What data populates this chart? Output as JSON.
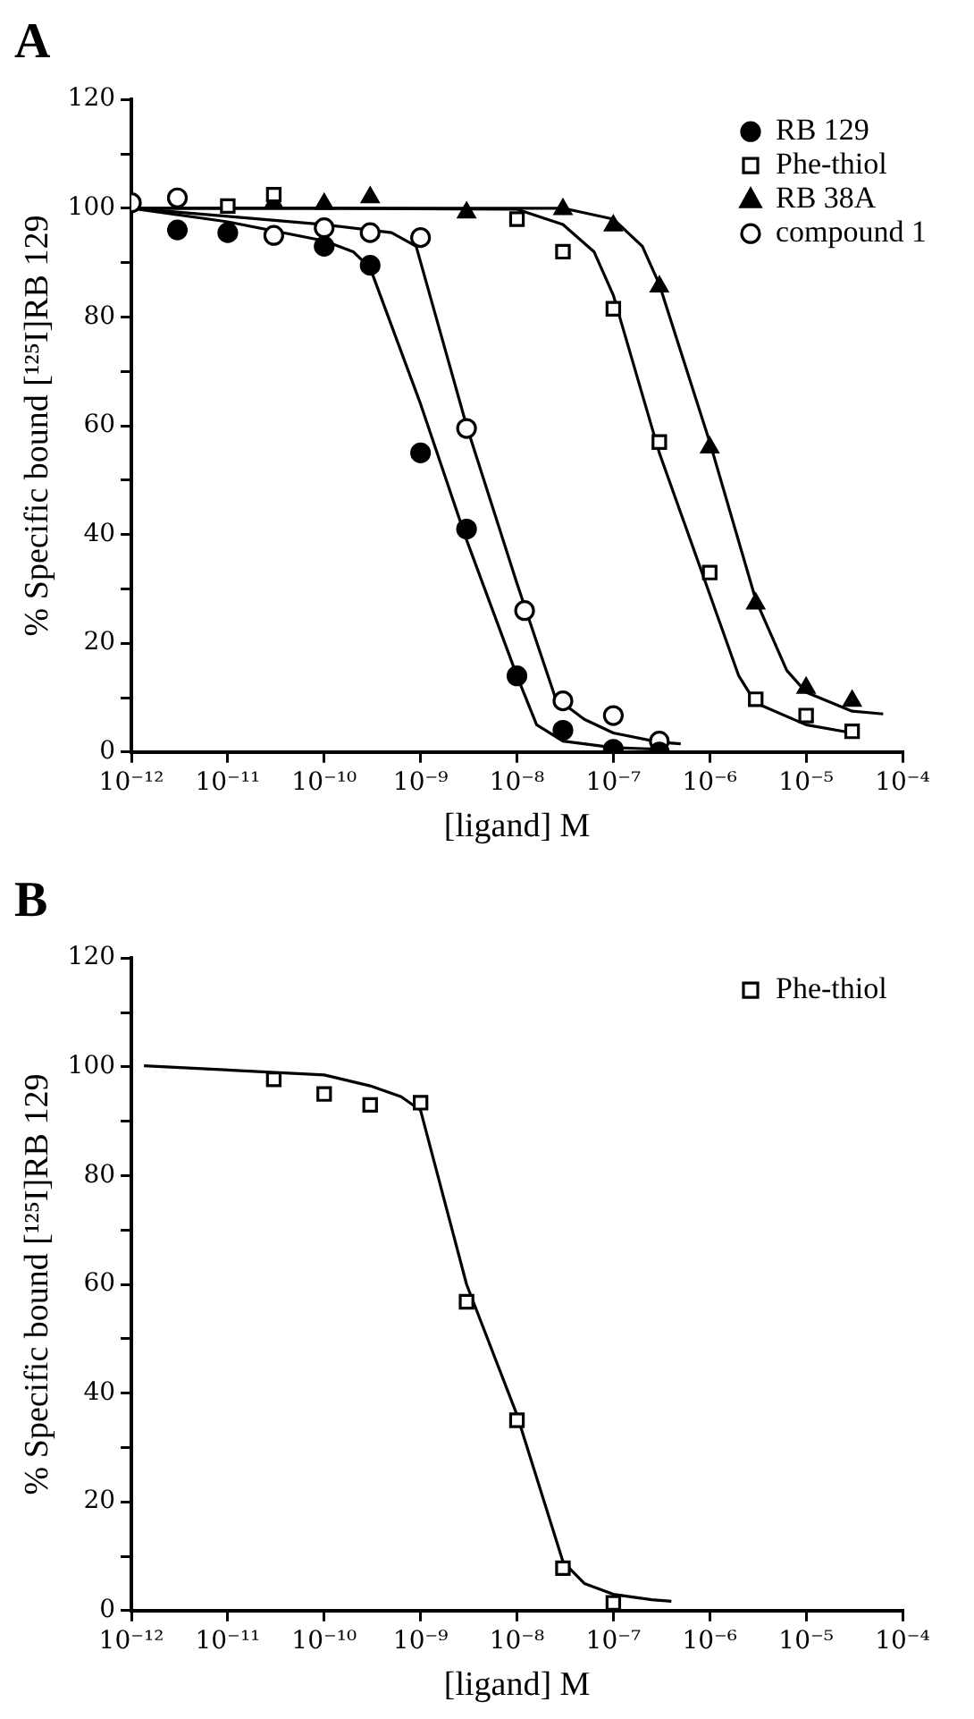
{
  "chart_data": [
    {
      "type": "scatter",
      "title": "A",
      "xlabel": "[ligand] M",
      "ylabel": "% Specific bound [¹²⁵I]RB 129",
      "log": "x",
      "legend": "top right",
      "xlim": [
        1e-12,
        0.0001
      ],
      "xticks": [
        {
          "value": 1e-12,
          "label": "10⁻¹²"
        },
        {
          "value": 1e-11,
          "label": "10⁻¹¹"
        },
        {
          "value": 1e-10,
          "label": "10⁻¹⁰"
        },
        {
          "value": 1e-09,
          "label": "10⁻⁹"
        },
        {
          "value": 1e-08,
          "label": "10⁻⁸"
        },
        {
          "value": 1e-07,
          "label": "10⁻⁷"
        },
        {
          "value": 1e-06,
          "label": "10⁻⁶"
        },
        {
          "value": 1e-05,
          "label": "10⁻⁵"
        },
        {
          "value": 0.0001,
          "label": "10⁻⁴"
        }
      ],
      "ylim": [
        0,
        120
      ],
      "yticks": [
        0,
        {
          "value": 10,
          "label": null
        },
        20,
        {
          "value": 30,
          "label": null
        },
        40,
        {
          "value": 50,
          "label": null
        },
        60,
        {
          "value": 70,
          "label": null
        },
        80,
        {
          "value": 90,
          "label": null
        },
        100,
        {
          "value": 110,
          "label": null
        },
        120
      ],
      "series": [
        {
          "name": "RB 129",
          "type": "scatter",
          "marker": "circle",
          "color": "#000000",
          "x": [
            3e-12,
            1e-11,
            1e-10,
            3e-10,
            1e-09,
            3e-09,
            1e-08,
            3e-08,
            1e-07,
            3e-07
          ],
          "values": [
            96,
            95.5,
            93,
            89.5,
            55,
            41,
            14,
            4,
            0.5,
            0
          ]
        },
        {
          "name": "Phe-thiol",
          "type": "scatter",
          "marker": "square",
          "color": "#ffffff",
          "x": [
            1e-11,
            3e-11,
            1e-08,
            3e-08,
            1e-07,
            3e-07,
            1e-06,
            3e-06,
            1e-05,
            3e-05
          ],
          "values": [
            100.4,
            102.5,
            98,
            92,
            81.5,
            57,
            33,
            9.7,
            6.7,
            3.8
          ]
        },
        {
          "name": "RB 38A",
          "type": "scatter",
          "marker": "triangle",
          "color": "#000000",
          "x": [
            3e-11,
            1e-10,
            3e-10,
            3e-09,
            3e-08,
            1e-07,
            3e-07,
            1e-06,
            3e-06,
            1e-05,
            3e-05
          ],
          "values": [
            101,
            100.8,
            102,
            99.2,
            99.8,
            96.8,
            85.6,
            56,
            27.3,
            11.8,
            9.4
          ]
        },
        {
          "name": "compound 1",
          "type": "scatter",
          "marker": "circle",
          "color": "#ffffff",
          "x": [
            1e-12,
            3e-12,
            3e-11,
            1e-10,
            3e-10,
            1e-09,
            3e-09,
            1.2e-08,
            3e-08,
            1e-07,
            3e-07
          ],
          "values": [
            101,
            101.9,
            95,
            96.4,
            95.5,
            94.6,
            59.5,
            26,
            9.4,
            6.7,
            2
          ]
        },
        {
          "type": "line",
          "marker": "none",
          "color": "#000000",
          "x": [
            1e-12,
            1e-11,
            1e-10,
            2e-10,
            3e-10,
            1e-09,
            3e-09,
            1e-08,
            1.6e-08,
            3e-08,
            1e-07,
            3e-07
          ],
          "values": [
            100,
            97.5,
            94,
            92,
            89,
            64,
            39,
            14,
            5,
            2,
            0.8,
            0.5
          ]
        },
        {
          "type": "line",
          "marker": "none",
          "color": "#000000",
          "x": [
            1e-12,
            1e-11,
            1e-10,
            5e-10,
            9e-10,
            3e-09,
            1e-08,
            2.5e-08,
            5e-08,
            1e-07,
            3e-07,
            5e-07
          ],
          "values": [
            100,
            98.5,
            97,
            95.5,
            93,
            60,
            31,
            10,
            6,
            3.5,
            1.8,
            1.5
          ]
        },
        {
          "type": "line",
          "marker": "none",
          "color": "#000000",
          "x": [
            1e-12,
            1e-10,
            1e-08,
            3e-08,
            6.3e-08,
            1e-07,
            3e-07,
            1e-06,
            2e-06,
            3e-06,
            1e-05,
            3e-05
          ],
          "values": [
            100,
            100,
            99.8,
            97,
            92,
            84,
            55,
            29,
            14,
            9,
            5,
            3.5
          ]
        },
        {
          "type": "line",
          "marker": "none",
          "color": "#000000",
          "x": [
            1e-12,
            1e-10,
            3e-08,
            1e-07,
            2e-07,
            3e-07,
            1e-06,
            3e-06,
            6.3e-06,
            1e-05,
            3e-05,
            6.3e-05
          ],
          "values": [
            100,
            100,
            100,
            98,
            93,
            86,
            57,
            28,
            15,
            11,
            7.5,
            7
          ]
        }
      ]
    },
    {
      "type": "scatter",
      "title": "B",
      "xlabel": "[ligand] M",
      "ylabel": "% Specific bound [¹²⁵I]RB 129",
      "log": "x",
      "legend": "top right",
      "xlim": [
        1e-12,
        0.0001
      ],
      "xticks": [
        {
          "value": 1e-12,
          "label": "10⁻¹²"
        },
        {
          "value": 1e-11,
          "label": "10⁻¹¹"
        },
        {
          "value": 1e-10,
          "label": "10⁻¹⁰"
        },
        {
          "value": 1e-09,
          "label": "10⁻⁹"
        },
        {
          "value": 1e-08,
          "label": "10⁻⁸"
        },
        {
          "value": 1e-07,
          "label": "10⁻⁷"
        },
        {
          "value": 1e-06,
          "label": "10⁻⁶"
        },
        {
          "value": 1e-05,
          "label": "10⁻⁵"
        },
        {
          "value": 0.0001,
          "label": "10⁻⁴"
        }
      ],
      "ylim": [
        0,
        120
      ],
      "yticks": [
        0,
        {
          "value": 10,
          "label": null
        },
        20,
        {
          "value": 30,
          "label": null
        },
        40,
        {
          "value": 50,
          "label": null
        },
        60,
        {
          "value": 70,
          "label": null
        },
        80,
        {
          "value": 90,
          "label": null
        },
        100,
        {
          "value": 110,
          "label": null
        },
        120
      ],
      "series": [
        {
          "name": "Phe-thiol",
          "type": "scatter",
          "marker": "square",
          "color": "#ffffff",
          "x": [
            3e-11,
            1e-10,
            3e-10,
            1e-09,
            3e-09,
            1e-08,
            3e-08,
            1e-07
          ],
          "values": [
            97.7,
            95,
            93,
            93.4,
            56.8,
            35,
            7.8,
            1.4
          ]
        },
        {
          "type": "line",
          "marker": "none",
          "color": "#000000",
          "x": [
            1.35e-12,
            1e-10,
            3e-10,
            6.3e-10,
            1e-09,
            3e-09,
            1e-08,
            3e-08,
            5e-08,
            1e-07,
            2.5e-07,
            4e-07
          ],
          "values": [
            100.2,
            98.5,
            96.5,
            94.5,
            92,
            60,
            36,
            9,
            5,
            3,
            2,
            1.7
          ]
        }
      ]
    }
  ]
}
